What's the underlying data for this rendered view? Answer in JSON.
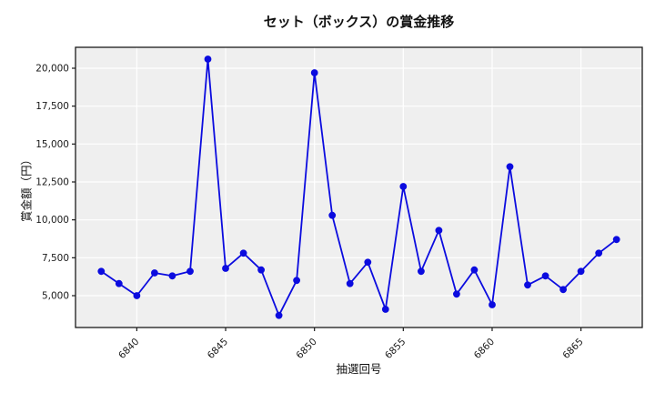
{
  "colors": {
    "figure_bg": "#ffffff",
    "plot_bg": "#efefef",
    "grid": "#ffffff",
    "spine": "#1a1a1a",
    "tick_text": "#1a1a1a",
    "line": "#0b0bdf",
    "marker": "#0b0bdf"
  },
  "chart_data": {
    "type": "line",
    "title": "セット（ボックス）の賞金推移",
    "xlabel": "抽選回号",
    "ylabel": "賞金額（円）",
    "marker": "o",
    "grid": true,
    "legend": null,
    "x": [
      6838,
      6839,
      6840,
      6841,
      6842,
      6843,
      6844,
      6845,
      6846,
      6847,
      6848,
      6849,
      6850,
      6851,
      6852,
      6853,
      6854,
      6855,
      6856,
      6857,
      6858,
      6859,
      6860,
      6861,
      6862,
      6863,
      6864,
      6865,
      6866,
      6867
    ],
    "y": [
      6600,
      5800,
      5000,
      6500,
      6300,
      6600,
      20600,
      6800,
      7800,
      6700,
      3700,
      6000,
      19700,
      10300,
      5800,
      7200,
      4100,
      12200,
      6600,
      9300,
      5100,
      6700,
      4400,
      13500,
      5700,
      6300,
      5400,
      6600,
      7800,
      8700
    ],
    "xlim": [
      6836.55,
      6868.45
    ],
    "ylim": [
      2900,
      21380
    ],
    "xticks": [
      6840,
      6845,
      6850,
      6855,
      6860,
      6865
    ],
    "xtick_labels": [
      "6840",
      "6845",
      "6850",
      "6855",
      "6860",
      "6865"
    ],
    "yticks": [
      5000,
      7500,
      10000,
      12500,
      15000,
      17500,
      20000
    ],
    "ytick_labels": [
      "5,000",
      "7,500",
      "10,000",
      "12,500",
      "15,000",
      "17,500",
      "20,000"
    ]
  }
}
